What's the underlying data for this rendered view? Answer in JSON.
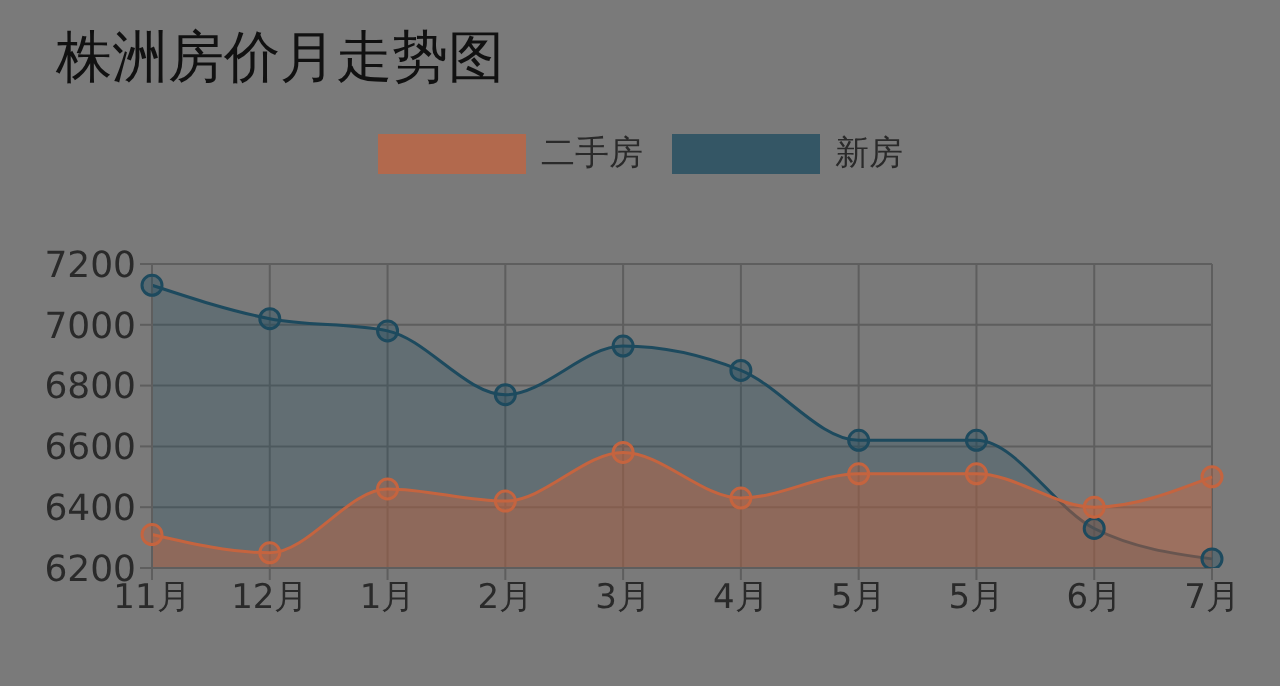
{
  "chart_data": {
    "type": "area",
    "title": "株洲房价月走势图",
    "categories": [
      "11月",
      "12月",
      "1月",
      "2月",
      "3月",
      "4月",
      "5月",
      "5月",
      "6月",
      "7月"
    ],
    "series": [
      {
        "name": "二手房",
        "color": "#c5643f",
        "values": [
          6310,
          6250,
          6460,
          6420,
          6580,
          6430,
          6510,
          6510,
          6400,
          6500
        ]
      },
      {
        "name": "新房",
        "color": "#1d4a5e",
        "values": [
          7130,
          7020,
          6980,
          6770,
          6930,
          6850,
          6620,
          6620,
          6330,
          6230
        ]
      }
    ],
    "ylim": [
      6200,
      7200
    ],
    "yticks": [
      6200,
      6400,
      6600,
      6800,
      7000,
      7200
    ],
    "grid": true,
    "legend": "top",
    "marker": "circle",
    "line_style": "solid"
  }
}
